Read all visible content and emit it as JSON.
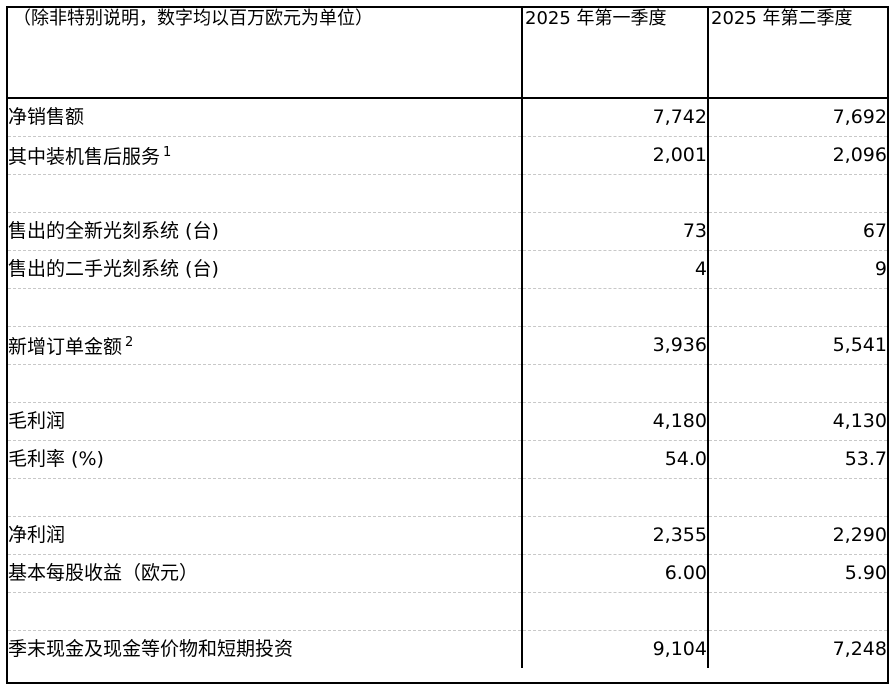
{
  "header": {
    "label": "（除非特别说明，数字均以百万欧元为单位）",
    "col_q1": "2025 年第一季度",
    "col_q2": "2025 年第二季度"
  },
  "rows": [
    {
      "label": "净销售额",
      "sup": "",
      "q1": "7,742",
      "q2": "7,692"
    },
    {
      "label": "其中装机售后服务",
      "sup": "1",
      "q1": "2,001",
      "q2": "2,096"
    },
    {
      "label": "",
      "sup": "",
      "q1": "",
      "q2": ""
    },
    {
      "label": "售出的全新光刻系统 (台)",
      "sup": "",
      "q1": "73",
      "q2": "67"
    },
    {
      "label": "售出的二手光刻系统 (台)",
      "sup": "",
      "q1": "4",
      "q2": "9"
    },
    {
      "label": "",
      "sup": "",
      "q1": "",
      "q2": ""
    },
    {
      "label": "新增订单金额",
      "sup": "2",
      "q1": "3,936",
      "q2": "5,541"
    },
    {
      "label": "",
      "sup": "",
      "q1": "",
      "q2": ""
    },
    {
      "label": "毛利润",
      "sup": "",
      "q1": "4,180",
      "q2": "4,130"
    },
    {
      "label": "毛利率 (%)",
      "sup": "",
      "q1": "54.0",
      "q2": "53.7"
    },
    {
      "label": "",
      "sup": "",
      "q1": "",
      "q2": ""
    },
    {
      "label": "净利润",
      "sup": "",
      "q1": "2,355",
      "q2": "2,290"
    },
    {
      "label": "基本每股收益（欧元）",
      "sup": "",
      "q1": "6.00",
      "q2": "5.90"
    },
    {
      "label": "",
      "sup": "",
      "q1": "",
      "q2": ""
    },
    {
      "label": "季末现金及现金等价物和短期投资",
      "sup": "",
      "q1": "9,104",
      "q2": "7,248"
    }
  ]
}
